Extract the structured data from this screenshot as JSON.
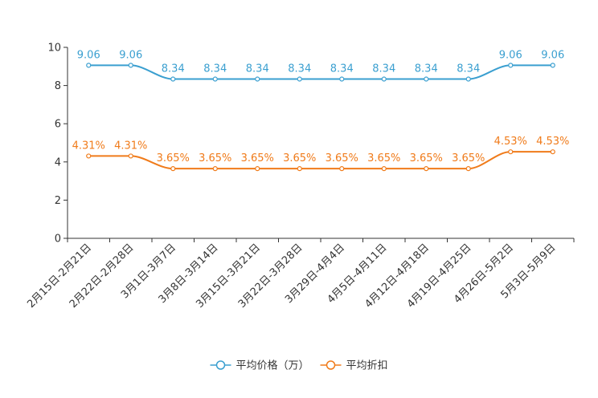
{
  "chart_data": {
    "type": "line",
    "title": "",
    "xlabel": "",
    "ylabel": "",
    "ylim": [
      0,
      10
    ],
    "yticks": [
      0,
      2,
      4,
      6,
      8,
      10
    ],
    "grid": false,
    "legend_position": "bottom",
    "categories": [
      "2月15日-2月21日",
      "2月22日-2月28日",
      "3月1日-3月7日",
      "3月8日-3月14日",
      "3月15日-3月21日",
      "3月22日-3月28日",
      "3月29日-4月4日",
      "4月5日-4月11日",
      "4月12日-4月18日",
      "4月19日-4月25日",
      "4月26日-5月2日",
      "5月3日-5月9日"
    ],
    "series": [
      {
        "name": "平均价格（万）",
        "color": "#3a9fd0",
        "values": [
          9.06,
          9.06,
          8.34,
          8.34,
          8.34,
          8.34,
          8.34,
          8.34,
          8.34,
          8.34,
          9.06,
          9.06
        ],
        "labels": [
          "9.06",
          "9.06",
          "8.34",
          "8.34",
          "8.34",
          "8.34",
          "8.34",
          "8.34",
          "8.34",
          "8.34",
          "9.06",
          "9.06"
        ]
      },
      {
        "name": "平均折扣",
        "color": "#f07b1a",
        "values": [
          4.31,
          4.31,
          3.65,
          3.65,
          3.65,
          3.65,
          3.65,
          3.65,
          3.65,
          3.65,
          4.53,
          4.53
        ],
        "labels": [
          "4.31%",
          "4.31%",
          "3.65%",
          "3.65%",
          "3.65%",
          "3.65%",
          "3.65%",
          "3.65%",
          "3.65%",
          "3.65%",
          "4.53%",
          "4.53%"
        ]
      }
    ]
  }
}
